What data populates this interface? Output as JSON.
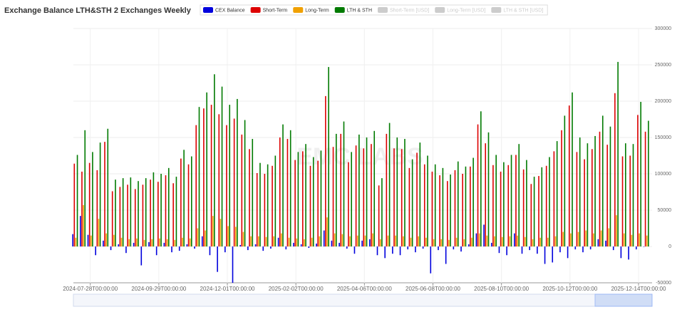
{
  "chart_data": {
    "type": "bar",
    "title": "Exchange Balance LTH&STH 2 Exchanges Weekly",
    "watermark": "EMC LABS",
    "categories": [
      null,
      null,
      "2024-07-28T00:00:00",
      null,
      null,
      null,
      null,
      null,
      null,
      null,
      null,
      "2024-09-29T00:00:00",
      null,
      null,
      null,
      null,
      null,
      null,
      null,
      null,
      "2024-12-01T00:00:00",
      null,
      null,
      null,
      null,
      null,
      null,
      null,
      null,
      "2025-02-02T00:00:00",
      null,
      null,
      null,
      null,
      null,
      null,
      null,
      null,
      "2025-04-06T00:00:00",
      null,
      null,
      null,
      null,
      null,
      null,
      null,
      null,
      "2025-06-08T00:00:00",
      null,
      null,
      null,
      null,
      null,
      null,
      null,
      null,
      "2025-08-10T00:00:00",
      null,
      null,
      null,
      null,
      null,
      null,
      null,
      null,
      "2025-10-12T00:00:00",
      null,
      null,
      null,
      null,
      null,
      null,
      null,
      null,
      "2025-12-14T00:00:00",
      null
    ],
    "series": [
      {
        "name": "CEX Balance",
        "color": "#0000dd",
        "values": [
          17000,
          42000,
          16000,
          -12000,
          8000,
          -5000,
          3000,
          -9000,
          5000,
          -26000,
          6000,
          -12000,
          5000,
          -8000,
          -6000,
          3000,
          -3000,
          14000,
          -12000,
          -35000,
          -8000,
          -50000,
          2000,
          -5000,
          3000,
          -6000,
          -3000,
          12000,
          -4000,
          5000,
          3000,
          -2000,
          4000,
          22000,
          8000,
          5000,
          -3000,
          -10000,
          8000,
          10000,
          -12000,
          -16000,
          -10000,
          -12000,
          -4000,
          -8000,
          -3000,
          -37000,
          -5000,
          -24000,
          -4000,
          -7000,
          3000,
          18000,
          30000,
          5000,
          -9000,
          -12000,
          18000,
          -10000,
          -5000,
          -10000,
          -24000,
          -22000,
          -8000,
          -16000,
          -4000,
          -8000,
          -4000,
          10000,
          8000,
          -5000,
          -16000,
          -18000,
          -4000,
          0
        ]
      },
      {
        "name": "Short-Term",
        "color": "#dd0000",
        "values": [
          114000,
          103000,
          115000,
          105000,
          144000,
          76000,
          82000,
          85000,
          79000,
          85000,
          92000,
          89000,
          98000,
          87000,
          121000,
          113000,
          167000,
          190000,
          195000,
          182000,
          167000,
          176000,
          154000,
          134000,
          101000,
          100000,
          111000,
          150000,
          148000,
          119000,
          131000,
          111000,
          118000,
          207000,
          137000,
          155000,
          116000,
          139000,
          135000,
          141000,
          84000,
          155000,
          135000,
          134000,
          108000,
          129000,
          113000,
          103000,
          98000,
          90000,
          105000,
          100000,
          110000,
          168000,
          142000,
          112000,
          103000,
          112000,
          126000,
          106000,
          86000,
          97000,
          111000,
          131000,
          160000,
          194000,
          130000,
          120000,
          134000,
          158000,
          140000,
          211000,
          124000,
          125000,
          181000,
          158000
        ]
      },
      {
        "name": "Long-Term",
        "color": "#f0a000",
        "values": [
          12000,
          57000,
          15000,
          38000,
          18000,
          16000,
          12000,
          10000,
          11000,
          9000,
          10000,
          11000,
          10000,
          9000,
          12000,
          11000,
          25000,
          22000,
          42000,
          38000,
          28000,
          27000,
          20000,
          14000,
          14000,
          13000,
          14000,
          18000,
          12000,
          11000,
          10000,
          12000,
          14000,
          40000,
          18000,
          17000,
          14000,
          15000,
          15000,
          18000,
          10000,
          15000,
          15000,
          14000,
          12000,
          14000,
          12000,
          10000,
          10000,
          9000,
          12000,
          10000,
          12000,
          18000,
          15000,
          14000,
          13000,
          14000,
          15000,
          13000,
          10000,
          12000,
          12000,
          14000,
          20000,
          18000,
          20000,
          22000,
          18000,
          22000,
          25000,
          43000,
          18000,
          16000,
          18000,
          15000
        ]
      },
      {
        "name": "LTH & STH",
        "color": "#007a00",
        "values": [
          126000,
          160000,
          130000,
          143000,
          162000,
          92000,
          94000,
          95000,
          90000,
          94000,
          102000,
          100000,
          108000,
          96000,
          133000,
          124000,
          192000,
          212000,
          237000,
          220000,
          195000,
          203000,
          174000,
          148000,
          115000,
          113000,
          125000,
          168000,
          160000,
          130000,
          141000,
          123000,
          132000,
          247000,
          155000,
          172000,
          130000,
          154000,
          150000,
          159000,
          94000,
          170000,
          150000,
          148000,
          120000,
          143000,
          125000,
          113000,
          108000,
          99000,
          117000,
          110000,
          122000,
          186000,
          157000,
          126000,
          116000,
          126000,
          141000,
          119000,
          96000,
          109000,
          123000,
          145000,
          180000,
          212000,
          150000,
          142000,
          152000,
          180000,
          165000,
          254000,
          142000,
          141000,
          199000,
          173000
        ]
      },
      {
        "name": "Short-Term [USD]",
        "color": "#cccccc",
        "visible": false
      },
      {
        "name": "Long-Term [USD]",
        "color": "#cccccc",
        "visible": false
      },
      {
        "name": "LTH & STH [USD]",
        "color": "#cccccc",
        "visible": false
      }
    ],
    "ylim": [
      -50000,
      300000
    ],
    "yticks": [
      -50000,
      0,
      50000,
      100000,
      150000,
      200000,
      250000,
      300000
    ],
    "grid": true
  }
}
